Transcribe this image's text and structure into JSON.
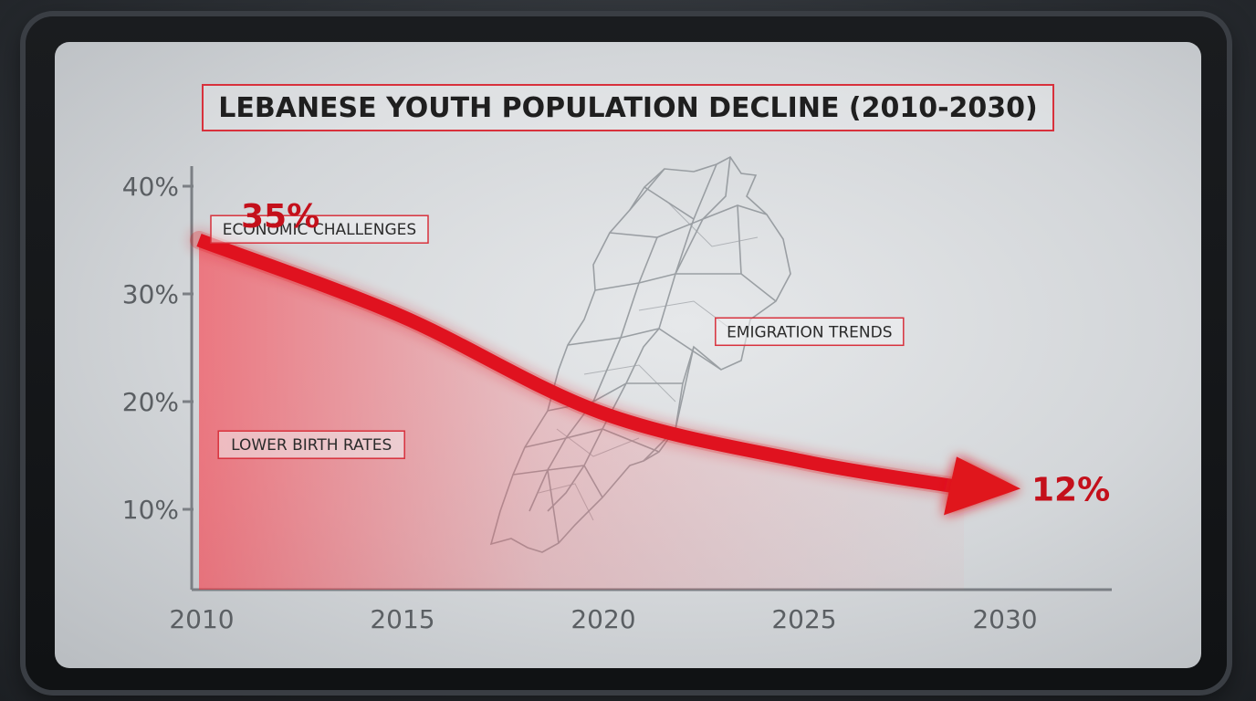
{
  "chart_data": {
    "type": "line",
    "title": "LEBANESE YOUTH POPULATION DECLINE (2010-2030)",
    "x": [
      2010,
      2015,
      2020,
      2025,
      2030
    ],
    "series": [
      {
        "values": [
          35,
          28,
          19,
          14.5,
          12
        ]
      }
    ],
    "x_ticks": [
      "2010",
      "2015",
      "2020",
      "2025",
      "2030"
    ],
    "y_ticks": [
      "10%",
      "20%",
      "30%",
      "40%"
    ],
    "ylim": [
      0,
      40
    ],
    "xlim": [
      2010,
      2030
    ],
    "start_label": "35%",
    "end_label": "12%",
    "annotations": [
      {
        "text": "ECONOMIC CHALLENGES",
        "x": 2013,
        "y": 36
      },
      {
        "text": "EMIGRATION TRENDS",
        "x": 2025.2,
        "y": 26.5
      },
      {
        "text": "LOWER BIRTH RATES",
        "x": 2012.8,
        "y": 16
      }
    ],
    "grid": false,
    "colors": {
      "line": "#e0121f",
      "fill": "#ff2a38",
      "label": "#c4101b",
      "box": "#d8313c"
    },
    "background_icon": "lebanon-map-outline-icon"
  }
}
